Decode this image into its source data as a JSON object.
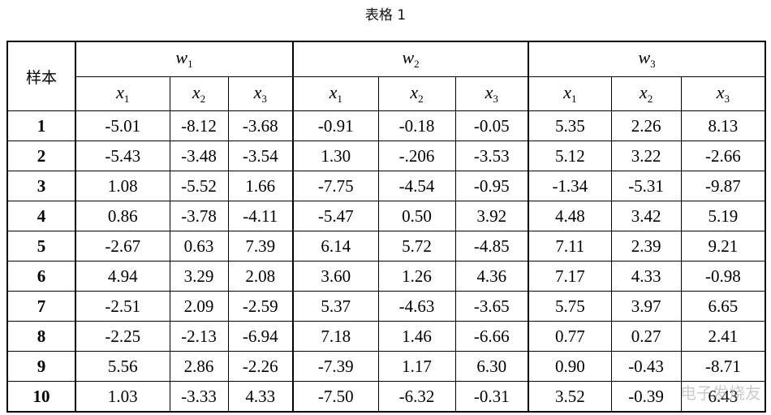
{
  "header": {
    "title": "表格 1"
  },
  "table": {
    "corner": "样本",
    "groups": [
      {
        "symbol": "w",
        "subscript": "1"
      },
      {
        "symbol": "w",
        "subscript": "2"
      },
      {
        "symbol": "w",
        "subscript": "3"
      }
    ],
    "columns": [
      {
        "symbol": "x",
        "subscript": "1"
      },
      {
        "symbol": "x",
        "subscript": "2"
      },
      {
        "symbol": "x",
        "subscript": "3"
      }
    ],
    "rows": [
      [
        "1",
        "-5.01",
        "-8.12",
        "-3.68",
        "-0.91",
        "-0.18",
        "-0.05",
        "5.35",
        "2.26",
        "8.13"
      ],
      [
        "2",
        "-5.43",
        "-3.48",
        "-3.54",
        "1.30",
        "-.206",
        "-3.53",
        "5.12",
        "3.22",
        "-2.66"
      ],
      [
        "3",
        "1.08",
        "-5.52",
        "1.66",
        "-7.75",
        "-4.54",
        "-0.95",
        "-1.34",
        "-5.31",
        "-9.87"
      ],
      [
        "4",
        "0.86",
        "-3.78",
        "-4.11",
        "-5.47",
        "0.50",
        "3.92",
        "4.48",
        "3.42",
        "5.19"
      ],
      [
        "5",
        "-2.67",
        "0.63",
        "7.39",
        "6.14",
        "5.72",
        "-4.85",
        "7.11",
        "2.39",
        "9.21"
      ],
      [
        "6",
        "4.94",
        "3.29",
        "2.08",
        "3.60",
        "1.26",
        "4.36",
        "7.17",
        "4.33",
        "-0.98"
      ],
      [
        "7",
        "-2.51",
        "2.09",
        "-2.59",
        "5.37",
        "-4.63",
        "-3.65",
        "5.75",
        "3.97",
        "6.65"
      ],
      [
        "8",
        "-2.25",
        "-2.13",
        "-6.94",
        "7.18",
        "1.46",
        "-6.66",
        "0.77",
        "0.27",
        "2.41"
      ],
      [
        "9",
        "5.56",
        "2.86",
        "-2.26",
        "-7.39",
        "1.17",
        "6.30",
        "0.90",
        "-0.43",
        "-8.71"
      ],
      [
        "10",
        "1.03",
        "-3.33",
        "4.33",
        "-7.50",
        "-6.32",
        "-0.31",
        "3.52",
        "-0.39",
        "6.43"
      ]
    ]
  },
  "watermark": "电子发烧友"
}
